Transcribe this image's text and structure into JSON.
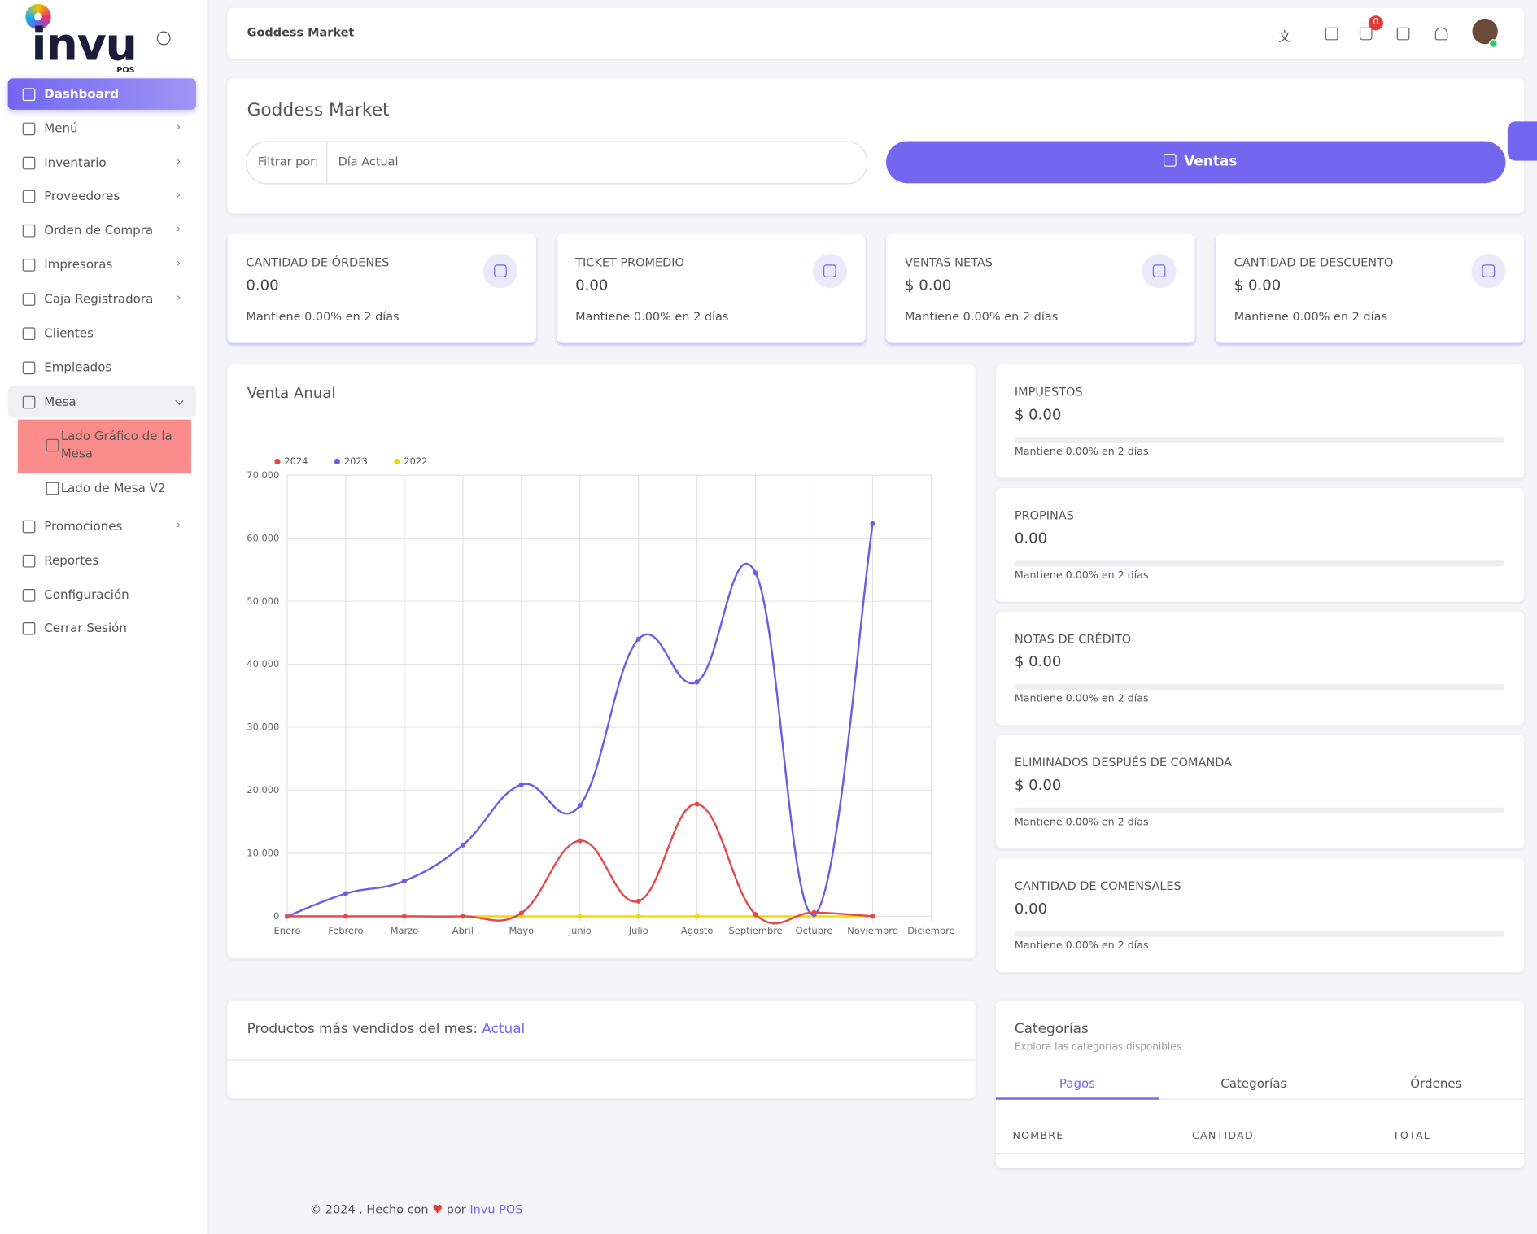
{
  "sidebar": {
    "logo": "invu",
    "logo_sub": "POS",
    "menu": [
      "Dashboard",
      "Menú",
      "Inventario",
      "Proveedores",
      "Orden de Compra",
      "Impresoras",
      "Caja Registradora",
      "Clientes",
      "Empleados",
      "Mesa"
    ],
    "submenu": [
      "Lado Gráfico de la Mesa",
      "Lado de Mesa V2"
    ],
    "menu2": [
      "Promociones",
      "Reportes",
      "Configuración",
      "Cerrar Sesión"
    ]
  },
  "topbar": {
    "title": "Goddess Market",
    "cart_count": 0
  },
  "header": {
    "title": "Goddess Market",
    "filter_label": "Filtrar por:",
    "filter_value": "Día Actual",
    "button": "Ventas"
  },
  "stats": [
    {
      "label": "CANTIDAD DE ÓRDENES",
      "value": "0.00",
      "note": "Mantiene 0.00% en 2 días"
    },
    {
      "label": "TICKET PROMEDIO",
      "value": "0.00",
      "note": "Mantiene 0.00% en 2 días"
    },
    {
      "label": "VENTAS NETAS",
      "value": "$ 0.00",
      "note": "Mantiene 0.00% en 2 días"
    },
    {
      "label": "CANTIDAD DE DESCUENTO",
      "value": "$ 0.00",
      "note": "Mantiene 0.00% en 2 días"
    }
  ],
  "side_stats": [
    {
      "label": "IMPUESTOS",
      "value": "$ 0.00",
      "note": "Mantiene 0.00% en 2 días"
    },
    {
      "label": "PROPINAS",
      "value": "0.00",
      "note": "Mantiene 0.00% en 2 días"
    },
    {
      "label": "NOTAS DE CRÉDITO",
      "value": "$ 0.00",
      "note": "Mantiene 0.00% en 2 días"
    },
    {
      "label": "ELIMINADOS DESPUÉS DE COMANDA",
      "value": "$ 0.00",
      "note": "Mantiene 0.00% en 2 días"
    },
    {
      "label": "CANTIDAD DE COMENSALES",
      "value": "0.00",
      "note": "Mantiene 0.00% en 2 días"
    }
  ],
  "chart_data": {
    "type": "line",
    "title": "Venta Anual",
    "categories": [
      "Enero",
      "Febrero",
      "Marzo",
      "Abril",
      "Mayo",
      "Junio",
      "Julio",
      "Agosto",
      "Septiembre",
      "Octubre",
      "Noviembre",
      "Diciembre"
    ],
    "series": [
      {
        "name": "2024",
        "color": "#e24a4a",
        "values": [
          0,
          0,
          0,
          0,
          500,
          12000,
          2400,
          17800,
          300,
          600,
          0,
          null
        ]
      },
      {
        "name": "2023",
        "color": "#6c5ce7",
        "values": [
          0,
          3600,
          5600,
          11300,
          20900,
          17600,
          44000,
          37200,
          54500,
          300,
          62300,
          null
        ]
      },
      {
        "name": "2022",
        "color": "#f5d800",
        "values": [
          0,
          0,
          0,
          0,
          0,
          0,
          0,
          0,
          0,
          0,
          0,
          null
        ]
      }
    ],
    "ylim": [
      0,
      70000
    ],
    "yticks": [
      0,
      {
        "value": 10000,
        "label": "10.000"
      },
      {
        "value": 20000,
        "label": "20.000"
      },
      {
        "value": 30000,
        "label": "30.000"
      },
      {
        "value": 40000,
        "label": "40.000"
      },
      {
        "value": 50000,
        "label": "50.000"
      },
      {
        "value": 60000,
        "label": "60.000"
      },
      {
        "value": 70000,
        "label": "70.000"
      }
    ],
    "grid": true,
    "legend": "top-left"
  },
  "products": {
    "title": "Productos más vendidos del mes:",
    "highlight": "Actual"
  },
  "categories": {
    "title": "Categorías",
    "subtitle": "Explora las categorías disponibles",
    "tabs": [
      "Pagos",
      "Categorías",
      "Órdenes"
    ],
    "columns": [
      "NOMBRE",
      "CANTIDAD",
      "TOTAL"
    ]
  },
  "footer": {
    "text": "© 2024 , Hecho con",
    "by": "por",
    "link": "Invu POS"
  }
}
